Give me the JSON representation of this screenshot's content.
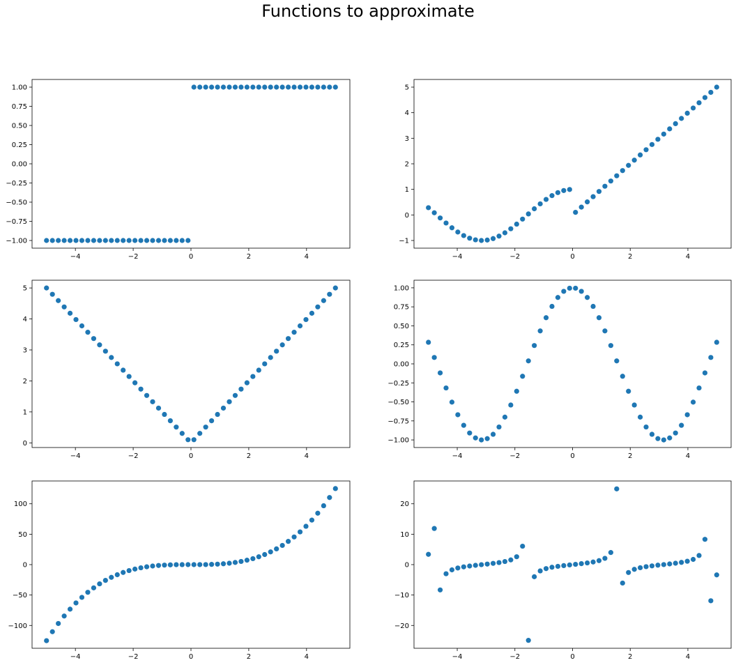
{
  "figure": {
    "title": "Functions to approximate"
  },
  "colors": {
    "marker": "#1f77b4",
    "axes": "#000000",
    "background": "#ffffff"
  },
  "chart_data": [
    {
      "type": "scatter",
      "function": "sign(x)",
      "xlim": [
        -5.5,
        5.5
      ],
      "ylim": [
        -1.1,
        1.1
      ],
      "xticks": [
        -4,
        -2,
        0,
        2,
        4
      ],
      "xtick_labels": [
        "−4",
        "−2",
        "0",
        "2",
        "4"
      ],
      "yticks": [
        -1.0,
        -0.75,
        -0.5,
        -0.25,
        0.0,
        0.25,
        0.5,
        0.75,
        1.0
      ],
      "ytick_labels": [
        "−1.00",
        "−0.75",
        "−0.50",
        "−0.25",
        "0.00",
        "0.25",
        "0.50",
        "0.75",
        "1.00"
      ],
      "x": [
        -5.0,
        -4.796,
        -4.592,
        -4.388,
        -4.184,
        -3.98,
        -3.776,
        -3.571,
        -3.367,
        -3.163,
        -2.959,
        -2.755,
        -2.551,
        -2.347,
        -2.143,
        -1.939,
        -1.735,
        -1.531,
        -1.327,
        -1.122,
        -0.918,
        -0.714,
        -0.51,
        -0.306,
        -0.102,
        0.102,
        0.306,
        0.51,
        0.714,
        0.918,
        1.122,
        1.327,
        1.531,
        1.735,
        1.939,
        2.143,
        2.347,
        2.551,
        2.755,
        2.959,
        3.163,
        3.367,
        3.571,
        3.776,
        3.98,
        4.184,
        4.388,
        4.592,
        4.796,
        5.0
      ],
      "y": [
        -1,
        -1,
        -1,
        -1,
        -1,
        -1,
        -1,
        -1,
        -1,
        -1,
        -1,
        -1,
        -1,
        -1,
        -1,
        -1,
        -1,
        -1,
        -1,
        -1,
        -1,
        -1,
        -1,
        -1,
        -1,
        1,
        1,
        1,
        1,
        1,
        1,
        1,
        1,
        1,
        1,
        1,
        1,
        1,
        1,
        1,
        1,
        1,
        1,
        1,
        1,
        1,
        1,
        1,
        1,
        1
      ]
    },
    {
      "type": "scatter",
      "function": "piecewise: cos(x) for x<0, x for x>0",
      "xlim": [
        -5.5,
        5.5
      ],
      "ylim": [
        -1.3,
        5.3
      ],
      "xticks": [
        -4,
        -2,
        0,
        2,
        4
      ],
      "xtick_labels": [
        "−4",
        "−2",
        "0",
        "2",
        "4"
      ],
      "yticks": [
        -1,
        0,
        1,
        2,
        3,
        4,
        5
      ],
      "ytick_labels": [
        "−1",
        "0",
        "1",
        "2",
        "3",
        "4",
        "5"
      ],
      "x": [
        -5.0,
        -4.796,
        -4.592,
        -4.388,
        -4.184,
        -3.98,
        -3.776,
        -3.571,
        -3.367,
        -3.163,
        -2.959,
        -2.755,
        -2.551,
        -2.347,
        -2.143,
        -1.939,
        -1.735,
        -1.531,
        -1.327,
        -1.122,
        -0.918,
        -0.714,
        -0.51,
        -0.306,
        -0.102,
        0.102,
        0.306,
        0.51,
        0.714,
        0.918,
        1.122,
        1.327,
        1.531,
        1.735,
        1.939,
        2.143,
        2.347,
        2.551,
        2.755,
        2.959,
        3.163,
        3.367,
        3.571,
        3.776,
        3.98,
        4.184,
        4.388,
        4.592,
        4.796,
        5.0
      ],
      "y": [
        0.284,
        0.084,
        -0.119,
        -0.317,
        -0.503,
        -0.669,
        -0.808,
        -0.909,
        -0.974,
        -1.0,
        -0.983,
        -0.926,
        -0.83,
        -0.7,
        -0.541,
        -0.36,
        -0.163,
        0.039,
        0.241,
        0.433,
        0.607,
        0.756,
        0.873,
        0.954,
        0.995,
        0.102,
        0.306,
        0.51,
        0.714,
        0.918,
        1.122,
        1.327,
        1.531,
        1.735,
        1.939,
        2.143,
        2.347,
        2.551,
        2.755,
        2.959,
        3.163,
        3.367,
        3.571,
        3.776,
        3.98,
        4.184,
        4.388,
        4.592,
        4.796,
        5.0
      ]
    },
    {
      "type": "scatter",
      "function": "abs(x)",
      "xlim": [
        -5.5,
        5.5
      ],
      "ylim": [
        -0.15,
        5.25
      ],
      "xticks": [
        -4,
        -2,
        0,
        2,
        4
      ],
      "xtick_labels": [
        "−4",
        "−2",
        "0",
        "2",
        "4"
      ],
      "yticks": [
        0,
        1,
        2,
        3,
        4,
        5
      ],
      "ytick_labels": [
        "0",
        "1",
        "2",
        "3",
        "4",
        "5"
      ],
      "x": [
        -5.0,
        -4.796,
        -4.592,
        -4.388,
        -4.184,
        -3.98,
        -3.776,
        -3.571,
        -3.367,
        -3.163,
        -2.959,
        -2.755,
        -2.551,
        -2.347,
        -2.143,
        -1.939,
        -1.735,
        -1.531,
        -1.327,
        -1.122,
        -0.918,
        -0.714,
        -0.51,
        -0.306,
        -0.102,
        0.102,
        0.306,
        0.51,
        0.714,
        0.918,
        1.122,
        1.327,
        1.531,
        1.735,
        1.939,
        2.143,
        2.347,
        2.551,
        2.755,
        2.959,
        3.163,
        3.367,
        3.571,
        3.776,
        3.98,
        4.184,
        4.388,
        4.592,
        4.796,
        5.0
      ],
      "y": [
        5.0,
        4.796,
        4.592,
        4.388,
        4.184,
        3.98,
        3.776,
        3.571,
        3.367,
        3.163,
        2.959,
        2.755,
        2.551,
        2.347,
        2.143,
        1.939,
        1.735,
        1.531,
        1.327,
        1.122,
        0.918,
        0.714,
        0.51,
        0.306,
        0.102,
        0.102,
        0.306,
        0.51,
        0.714,
        0.918,
        1.122,
        1.327,
        1.531,
        1.735,
        1.939,
        2.143,
        2.347,
        2.551,
        2.755,
        2.959,
        3.163,
        3.367,
        3.571,
        3.776,
        3.98,
        4.184,
        4.388,
        4.592,
        4.796,
        5.0
      ]
    },
    {
      "type": "scatter",
      "function": "cos(x)",
      "xlim": [
        -5.5,
        5.5
      ],
      "ylim": [
        -1.1,
        1.1
      ],
      "xticks": [
        -4,
        -2,
        0,
        2,
        4
      ],
      "xtick_labels": [
        "−4",
        "−2",
        "0",
        "2",
        "4"
      ],
      "yticks": [
        -1.0,
        -0.75,
        -0.5,
        -0.25,
        0.0,
        0.25,
        0.5,
        0.75,
        1.0
      ],
      "ytick_labels": [
        "−1.00",
        "−0.75",
        "−0.50",
        "−0.25",
        "0.00",
        "0.25",
        "0.50",
        "0.75",
        "1.00"
      ],
      "x": [
        -5.0,
        -4.796,
        -4.592,
        -4.388,
        -4.184,
        -3.98,
        -3.776,
        -3.571,
        -3.367,
        -3.163,
        -2.959,
        -2.755,
        -2.551,
        -2.347,
        -2.143,
        -1.939,
        -1.735,
        -1.531,
        -1.327,
        -1.122,
        -0.918,
        -0.714,
        -0.51,
        -0.306,
        -0.102,
        0.102,
        0.306,
        0.51,
        0.714,
        0.918,
        1.122,
        1.327,
        1.531,
        1.735,
        1.939,
        2.143,
        2.347,
        2.551,
        2.755,
        2.959,
        3.163,
        3.367,
        3.571,
        3.776,
        3.98,
        4.184,
        4.388,
        4.592,
        4.796,
        5.0
      ],
      "y": [
        0.284,
        0.084,
        -0.119,
        -0.317,
        -0.503,
        -0.669,
        -0.808,
        -0.909,
        -0.974,
        -1.0,
        -0.983,
        -0.926,
        -0.83,
        -0.7,
        -0.541,
        -0.36,
        -0.163,
        0.039,
        0.241,
        0.433,
        0.607,
        0.756,
        0.873,
        0.954,
        0.995,
        0.995,
        0.954,
        0.873,
        0.756,
        0.607,
        0.433,
        0.241,
        0.039,
        -0.163,
        -0.36,
        -0.541,
        -0.7,
        -0.83,
        -0.926,
        -0.983,
        -1.0,
        -0.974,
        -0.909,
        -0.808,
        -0.669,
        -0.503,
        -0.317,
        -0.119,
        0.084,
        0.284
      ]
    },
    {
      "type": "scatter",
      "function": "x^3",
      "xlim": [
        -5.5,
        5.5
      ],
      "ylim": [
        -137.5,
        137.5
      ],
      "xticks": [
        -4,
        -2,
        0,
        2,
        4
      ],
      "xtick_labels": [
        "−4",
        "−2",
        "0",
        "2",
        "4"
      ],
      "yticks": [
        -100,
        -50,
        0,
        50,
        100
      ],
      "ytick_labels": [
        "−100",
        "−50",
        "0",
        "50",
        "100"
      ],
      "x": [
        -5.0,
        -4.796,
        -4.592,
        -4.388,
        -4.184,
        -3.98,
        -3.776,
        -3.571,
        -3.367,
        -3.163,
        -2.959,
        -2.755,
        -2.551,
        -2.347,
        -2.143,
        -1.939,
        -1.735,
        -1.531,
        -1.327,
        -1.122,
        -0.918,
        -0.714,
        -0.51,
        -0.306,
        -0.102,
        0.102,
        0.306,
        0.51,
        0.714,
        0.918,
        1.122,
        1.327,
        1.531,
        1.735,
        1.939,
        2.143,
        2.347,
        2.551,
        2.755,
        2.959,
        3.163,
        3.367,
        3.571,
        3.776,
        3.98,
        4.184,
        4.388,
        4.592,
        4.796,
        5.0
      ],
      "y": [
        -125.0,
        -110.3,
        -96.8,
        -84.5,
        -73.2,
        -63.0,
        -53.8,
        -45.5,
        -38.2,
        -31.6,
        -25.9,
        -20.9,
        -16.6,
        -12.9,
        -9.8,
        -7.3,
        -5.2,
        -3.6,
        -2.3,
        -1.4,
        -0.8,
        -0.4,
        -0.1,
        -0.03,
        -0.001,
        0.001,
        0.03,
        0.1,
        0.4,
        0.8,
        1.4,
        2.3,
        3.6,
        5.2,
        7.3,
        9.8,
        12.9,
        16.6,
        20.9,
        25.9,
        31.6,
        38.2,
        45.5,
        53.8,
        63.0,
        73.2,
        84.5,
        96.8,
        110.3,
        125.0
      ]
    },
    {
      "type": "scatter",
      "function": "tan(x)",
      "xlim": [
        -5.5,
        5.5
      ],
      "ylim": [
        -27.5,
        27.5
      ],
      "xticks": [
        -4,
        -2,
        0,
        2,
        4
      ],
      "xtick_labels": [
        "−4",
        "−2",
        "0",
        "2",
        "4"
      ],
      "yticks": [
        -20,
        -10,
        0,
        10,
        20
      ],
      "ytick_labels": [
        "−20",
        "−10",
        "0",
        "10",
        "20"
      ],
      "x": [
        -5.0,
        -4.796,
        -4.592,
        -4.388,
        -4.184,
        -3.98,
        -3.776,
        -3.571,
        -3.367,
        -3.163,
        -2.959,
        -2.755,
        -2.551,
        -2.347,
        -2.143,
        -1.939,
        -1.735,
        -1.531,
        -1.327,
        -1.122,
        -0.918,
        -0.714,
        -0.51,
        -0.306,
        -0.102,
        0.102,
        0.306,
        0.51,
        0.714,
        0.918,
        1.122,
        1.327,
        1.531,
        1.735,
        1.939,
        2.143,
        2.347,
        2.551,
        2.755,
        2.959,
        3.163,
        3.367,
        3.571,
        3.776,
        3.98,
        4.184,
        4.388,
        4.592,
        4.796,
        5.0
      ],
      "y": [
        3.38,
        11.88,
        -8.32,
        -3.0,
        -1.72,
        -1.11,
        -0.74,
        -0.46,
        -0.23,
        -0.02,
        0.18,
        0.41,
        0.67,
        1.02,
        1.55,
        2.59,
        6.06,
        -24.9,
        -3.98,
        -2.07,
        -1.31,
        -0.86,
        -0.56,
        -0.32,
        -0.1,
        0.1,
        0.32,
        0.56,
        0.86,
        1.31,
        2.07,
        3.98,
        24.9,
        -6.06,
        -2.59,
        -1.55,
        -1.02,
        -0.67,
        -0.41,
        -0.18,
        0.02,
        0.23,
        0.46,
        0.74,
        1.11,
        1.72,
        3.0,
        8.32,
        -11.88,
        -3.38
      ]
    }
  ]
}
